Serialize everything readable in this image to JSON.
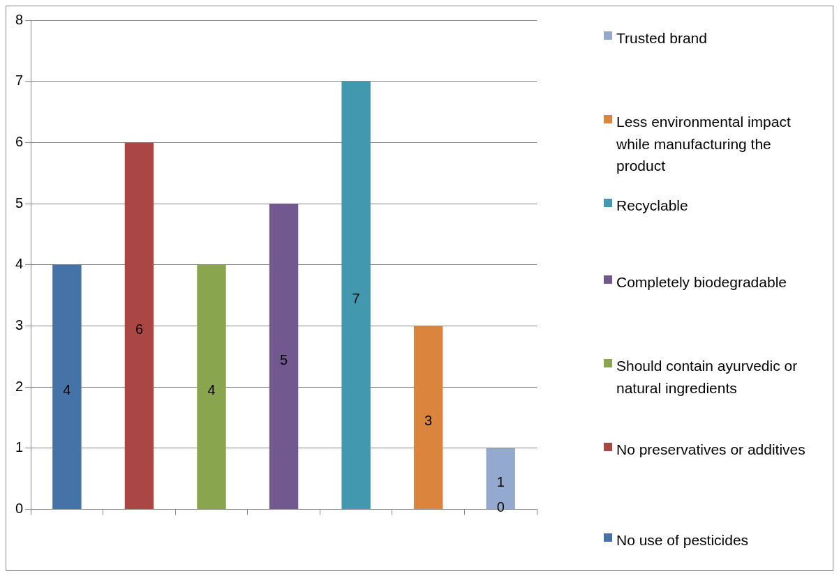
{
  "chart_data": {
    "type": "bar",
    "categories": [
      null,
      null,
      null,
      null,
      null,
      null,
      null
    ],
    "series": [
      {
        "name": "No use of pesticides",
        "color": "#4572a7",
        "values": [
          4,
          null,
          null,
          null,
          null,
          null,
          null
        ]
      },
      {
        "name": "No preservatives or additives",
        "color": "#aa4643",
        "values": [
          null,
          6,
          null,
          null,
          null,
          null,
          null
        ]
      },
      {
        "name": "Should contain ayurvedic or natural ingredients",
        "color": "#89a54e",
        "values": [
          null,
          null,
          4,
          null,
          null,
          null,
          null
        ]
      },
      {
        "name": "Completely biodegradable",
        "color": "#71588f",
        "values": [
          null,
          null,
          null,
          5,
          null,
          null,
          null
        ]
      },
      {
        "name": "Recyclable",
        "color": "#4198af",
        "values": [
          null,
          null,
          null,
          null,
          7,
          null,
          null
        ]
      },
      {
        "name": "Less environmental impact while manufacturing the product",
        "color": "#db843d",
        "values": [
          null,
          null,
          null,
          null,
          null,
          3,
          null
        ]
      },
      {
        "name": "Trusted brand",
        "color": "#93a9cf",
        "values": [
          null,
          null,
          null,
          null,
          null,
          null,
          1
        ],
        "value_labels": [
          null,
          null,
          null,
          null,
          null,
          null,
          "1\n0"
        ]
      }
    ],
    "ylim": [
      0,
      8
    ],
    "yticks": [
      0,
      1,
      2,
      3,
      4,
      5,
      6,
      7,
      8
    ],
    "grid": "y",
    "legend": "right",
    "data_labels": true
  }
}
